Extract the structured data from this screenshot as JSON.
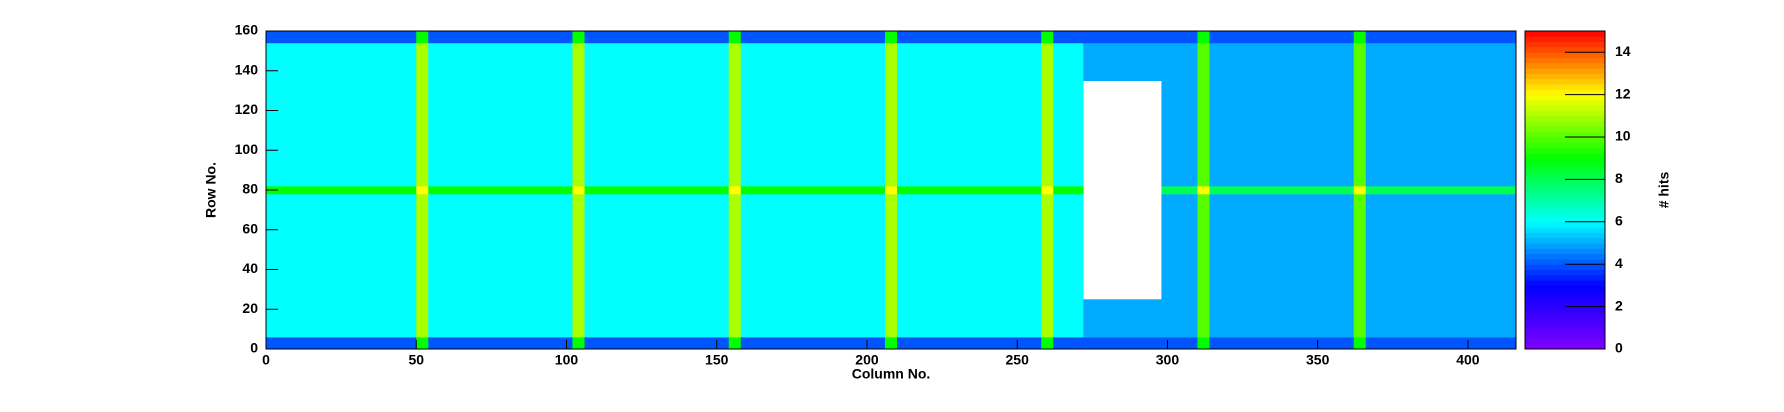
{
  "chart_data": {
    "type": "heatmap",
    "x_label": "Column No.",
    "y_label": "Row No.",
    "z_label": "# hits",
    "xbins": [
      0,
      50,
      54,
      102,
      106,
      154,
      158,
      206,
      210,
      258,
      262,
      272,
      298,
      310,
      314,
      362,
      366,
      416
    ],
    "ybins": [
      0,
      6,
      25,
      78,
      82,
      135,
      154,
      160
    ],
    "values": [
      [
        4,
        9,
        4,
        9,
        4,
        9,
        4,
        9,
        4,
        9,
        4,
        4,
        4,
        9,
        4,
        9,
        4
      ],
      [
        6,
        11,
        6,
        11,
        6,
        11,
        6,
        11,
        6,
        11,
        6,
        5,
        5,
        10,
        5,
        10,
        5
      ],
      [
        6,
        11,
        6,
        11,
        6,
        11,
        6,
        11,
        6,
        11,
        6,
        null,
        5,
        10,
        5,
        10,
        5
      ],
      [
        9,
        12,
        9,
        12,
        9,
        12,
        9,
        12,
        9,
        12,
        9,
        null,
        8,
        12,
        8,
        12,
        8
      ],
      [
        6,
        11,
        6,
        11,
        6,
        11,
        6,
        11,
        6,
        11,
        6,
        null,
        5,
        10,
        5,
        10,
        5
      ],
      [
        6,
        11,
        6,
        11,
        6,
        11,
        6,
        11,
        6,
        11,
        6,
        5,
        5,
        10,
        5,
        10,
        5
      ],
      [
        4,
        9,
        4,
        9,
        4,
        9,
        4,
        9,
        4,
        9,
        4,
        4,
        4,
        9,
        4,
        9,
        4
      ]
    ],
    "xlim": [
      0,
      416
    ],
    "ylim": [
      0,
      160
    ],
    "zlim": [
      0,
      15
    ],
    "xticks": [
      0,
      50,
      100,
      150,
      200,
      250,
      300,
      350,
      400
    ],
    "yticks": [
      0,
      20,
      40,
      60,
      80,
      100,
      120,
      140,
      160
    ],
    "zticks": [
      0,
      2,
      4,
      6,
      8,
      10,
      12,
      14
    ],
    "colorscale": [
      "#8000ff",
      "#0000ff",
      "#00ffff",
      "#00ff00",
      "#ffff00",
      "#ff0000"
    ]
  }
}
